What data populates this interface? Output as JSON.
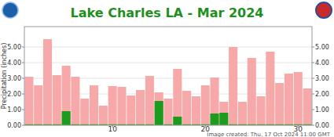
{
  "chart_data": {
    "type": "bar",
    "title": "Lake Charles LA - Mar 2024",
    "y_label": "Precipitation (inches)",
    "annotation": "Image created: Thu, 17 Oct 2024 11:00 GMT",
    "x": [
      1,
      2,
      3,
      4,
      5,
      6,
      7,
      8,
      9,
      10,
      11,
      12,
      13,
      14,
      15,
      16,
      17,
      18,
      19,
      20,
      21,
      22,
      23,
      24,
      25,
      26,
      27,
      28,
      29,
      30,
      31
    ],
    "xlim": [
      0.5,
      31.5
    ],
    "xticks": [
      10,
      20,
      30
    ],
    "ylim": [
      0,
      6.3
    ],
    "yticks": [
      {
        "value": 0,
        "label": "0.00"
      },
      {
        "value": 1,
        "label": "1.00"
      },
      {
        "value": 2,
        "label": "2.00"
      },
      {
        "value": 3,
        "label": "3.00"
      },
      {
        "value": 4,
        "label": "4.00"
      },
      {
        "value": 5,
        "label": "5.00"
      }
    ],
    "grid": true,
    "series": [
      {
        "color": "#f7a9a9",
        "values": [
          3.1,
          2.55,
          5.5,
          3.2,
          3.8,
          3.1,
          1.7,
          2.55,
          1.25,
          2.5,
          2.45,
          1.9,
          2.25,
          3.15,
          2.1,
          1.7,
          3.6,
          2.2,
          1.85,
          2.55,
          3.05,
          1.5,
          5.0,
          1.5,
          4.3,
          1.85,
          4.7,
          2.7,
          3.3,
          3.4,
          2.35
        ]
      },
      {
        "color": "#1c9c1c",
        "values": [
          0.06,
          0.06,
          0.06,
          0.06,
          0.9,
          0.06,
          0.06,
          0.06,
          0.06,
          0.06,
          0.06,
          0.06,
          0.06,
          0.06,
          1.55,
          0.06,
          0.55,
          0.06,
          0.06,
          0.06,
          0.75,
          0.8,
          0.06,
          0.06,
          0.06,
          0.06,
          0.06,
          0.06,
          0.06,
          0.06,
          0.06
        ]
      }
    ]
  }
}
